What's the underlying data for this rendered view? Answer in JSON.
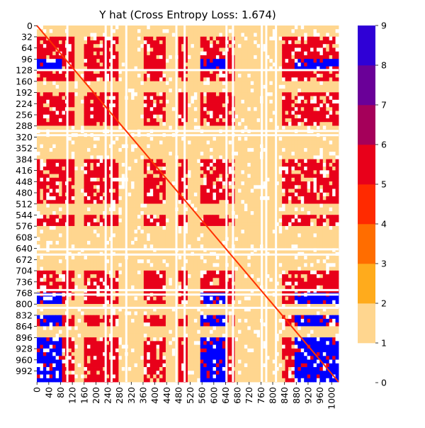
{
  "chart_data": {
    "type": "heatmap",
    "title": "Y hat (Cross Entropy Loss: 1.674)",
    "xlabel": "",
    "ylabel": "",
    "matrix_size": 1024,
    "x_tick_labels": [
      "0",
      "40",
      "80",
      "120",
      "160",
      "200",
      "240",
      "280",
      "320",
      "360",
      "400",
      "440",
      "480",
      "520",
      "560",
      "600",
      "640",
      "680",
      "720",
      "760",
      "800",
      "840",
      "880",
      "920",
      "960",
      "1000"
    ],
    "y_tick_labels": [
      "0",
      "32",
      "64",
      "96",
      "128",
      "160",
      "192",
      "224",
      "256",
      "288",
      "320",
      "352",
      "384",
      "416",
      "448",
      "480",
      "512",
      "544",
      "576",
      "608",
      "640",
      "672",
      "704",
      "736",
      "768",
      "800",
      "832",
      "864",
      "896",
      "928",
      "960",
      "992"
    ],
    "colorbar": {
      "range": [
        0,
        9
      ],
      "tick_labels": [
        "0",
        "1",
        "2",
        "3",
        "4",
        "5",
        "6",
        "7",
        "8",
        "9"
      ],
      "levels": [
        {
          "from": 0,
          "to": 1,
          "color": "#ffffff"
        },
        {
          "from": 1,
          "to": 2,
          "color": "#ffd68f"
        },
        {
          "from": 2,
          "to": 3,
          "color": "#ffab1c"
        },
        {
          "from": 3,
          "to": 4,
          "color": "#ff6d00"
        },
        {
          "from": 4,
          "to": 5,
          "color": "#ff2a00"
        },
        {
          "from": 5,
          "to": 6,
          "color": "#e8001a"
        },
        {
          "from": 6,
          "to": 7,
          "color": "#a5005a"
        },
        {
          "from": 7,
          "to": 8,
          "color": "#6a0098"
        },
        {
          "from": 8,
          "to": 9,
          "color": "#2f00d6"
        },
        {
          "from": 9,
          "to": 9.01,
          "color": "#0000ff"
        }
      ]
    },
    "diagonal_color": "#ff3000",
    "row_group_levels": [
      1,
      5,
      5,
      9,
      4,
      1,
      5,
      5,
      5,
      1,
      1,
      1,
      5,
      5,
      5,
      5,
      1,
      5,
      1,
      1,
      1,
      1,
      5,
      5,
      9,
      1,
      9,
      1,
      9,
      9,
      9,
      9
    ],
    "col_group_levels": [
      9,
      9,
      5,
      1,
      5,
      5,
      5,
      1,
      1,
      5,
      5,
      1,
      5,
      1,
      9,
      9,
      5,
      1,
      1,
      1,
      1,
      5,
      9,
      9,
      9,
      9
    ],
    "blank_rows": [
      125,
      300,
      312,
      640,
      655,
      757,
      770,
      808
    ],
    "blank_cols": [
      100,
      230,
      250,
      300,
      470,
      498,
      640,
      662,
      760,
      775,
      808
    ]
  }
}
